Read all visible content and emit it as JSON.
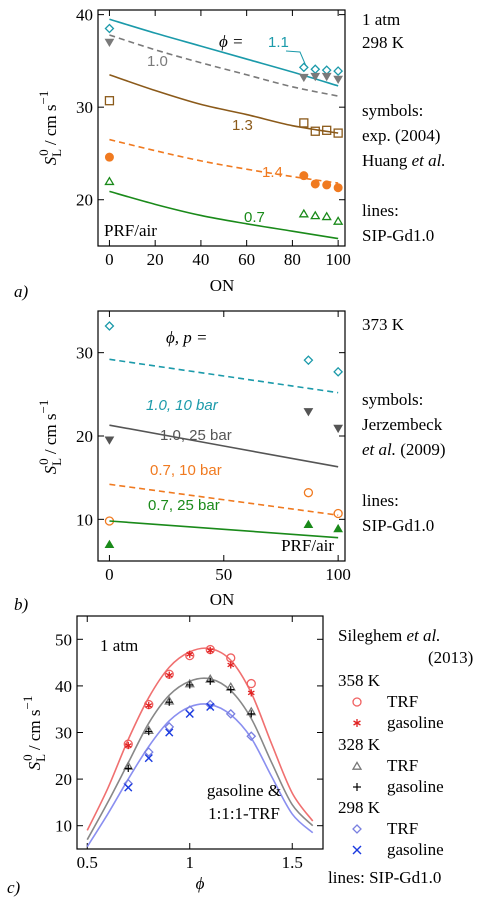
{
  "chart_data": [
    {
      "id": "a",
      "type": "line",
      "panel_label": "a)",
      "xlabel": "ON",
      "ylabel": "S_L^0 / cm s^-1",
      "xlim": [
        -5,
        103
      ],
      "ylim": [
        15,
        40.5
      ],
      "xticks": [
        0,
        20,
        40,
        60,
        80,
        100
      ],
      "yticks": [
        20,
        30,
        40
      ],
      "grid": false,
      "side_notes": [
        "1 atm",
        "298 K",
        "symbols:",
        "exp. (2004)",
        "Huang et al.",
        "lines:",
        "SIP-Gd1.0"
      ],
      "inner_text": "PRF/air",
      "legend_header": "ϕ =",
      "series": [
        {
          "name": "1.1",
          "color": "#1b9aaa",
          "dash": false,
          "marker": "diamond",
          "line_x": [
            0,
            20,
            40,
            60,
            80,
            100
          ],
          "line_y": [
            39.5,
            38.0,
            36.6,
            35.2,
            33.8,
            32.3
          ],
          "points_x": [
            0,
            85,
            90,
            95,
            100
          ],
          "points_y": [
            38.5,
            34.3,
            34.1,
            34.0,
            33.9
          ]
        },
        {
          "name": "1.0",
          "color": "#7a7a7a",
          "dash": true,
          "marker": "triangle-down",
          "line_x": [
            0,
            20,
            40,
            60,
            80,
            100
          ],
          "line_y": [
            37.8,
            36.2,
            34.8,
            33.5,
            32.2,
            31.2
          ],
          "points_x": [
            0,
            85,
            90,
            95,
            100
          ],
          "points_y": [
            37.0,
            33.2,
            33.3,
            33.3,
            33.0
          ]
        },
        {
          "name": "1.3",
          "color": "#8b5a1a",
          "dash": false,
          "marker": "square",
          "line_x": [
            0,
            20,
            40,
            60,
            80,
            100
          ],
          "line_y": [
            33.5,
            31.8,
            30.3,
            29.2,
            28.0,
            27.2
          ],
          "points_x": [
            0,
            85,
            90,
            95,
            100
          ],
          "points_y": [
            30.7,
            28.3,
            27.4,
            27.5,
            27.2
          ]
        },
        {
          "name": "1.4",
          "color": "#f07a20",
          "dash": true,
          "marker": "circle-filled",
          "line_x": [
            0,
            20,
            40,
            60,
            80,
            100
          ],
          "line_y": [
            26.5,
            25.3,
            24.2,
            23.3,
            22.5,
            21.8
          ],
          "points_x": [
            0,
            85,
            90,
            95,
            100
          ],
          "points_y": [
            24.6,
            22.6,
            21.7,
            21.6,
            21.3
          ]
        },
        {
          "name": "0.7",
          "color": "#1a8a1a",
          "dash": false,
          "marker": "triangle",
          "line_x": [
            0,
            20,
            40,
            60,
            80,
            100
          ],
          "line_y": [
            20.9,
            19.5,
            18.3,
            17.4,
            16.6,
            15.8
          ],
          "points_x": [
            0,
            85,
            90,
            95,
            100
          ],
          "points_y": [
            22.0,
            18.5,
            18.3,
            18.2,
            17.7
          ]
        }
      ]
    },
    {
      "id": "b",
      "type": "line",
      "panel_label": "b)",
      "xlabel": "ON",
      "ylabel": "S_L^0 / cm s^-1",
      "xlim": [
        -5,
        103
      ],
      "ylim": [
        5,
        35
      ],
      "xticks": [
        0,
        50,
        100
      ],
      "yticks": [
        10,
        20,
        30
      ],
      "grid": false,
      "side_notes": [
        "373 K",
        "symbols:",
        "Jerzembeck",
        "et al. (2009)",
        "lines:",
        "SIP-Gd1.0"
      ],
      "inner_text": "PRF/air",
      "legend_header": "ϕ, p =",
      "series": [
        {
          "name": "1.0, 10 bar",
          "color": "#1b9aaa",
          "dash": true,
          "marker": "diamond",
          "line_x": [
            0,
            100
          ],
          "line_y": [
            29.2,
            25.2
          ],
          "points_x": [
            0,
            87,
            100
          ],
          "points_y": [
            33.2,
            29.1,
            27.7
          ]
        },
        {
          "name": "1.0, 25 bar",
          "color": "#555555",
          "dash": false,
          "marker": "triangle-down",
          "line_x": [
            0,
            100
          ],
          "line_y": [
            21.3,
            16.3
          ],
          "points_x": [
            0,
            87,
            100
          ],
          "points_y": [
            19.5,
            22.9,
            20.9
          ]
        },
        {
          "name": "0.7, 10 bar",
          "color": "#f07a20",
          "dash": true,
          "marker": "circle",
          "line_x": [
            0,
            100
          ],
          "line_y": [
            14.2,
            10.5
          ],
          "points_x": [
            0,
            87,
            100
          ],
          "points_y": [
            9.8,
            13.2,
            10.7
          ]
        },
        {
          "name": "0.7, 25 bar",
          "color": "#1a8a1a",
          "dash": false,
          "marker": "triangle",
          "line_x": [
            0,
            100
          ],
          "line_y": [
            9.8,
            7.8
          ],
          "points_x": [
            0,
            87,
            100
          ],
          "points_y": [
            7.0,
            9.4,
            8.9
          ]
        }
      ]
    },
    {
      "id": "c",
      "type": "line",
      "panel_label": "c)",
      "xlabel": "ϕ",
      "ylabel": "S_L^0 / cm s^-1",
      "xlim": [
        0.45,
        1.65
      ],
      "ylim": [
        5,
        55
      ],
      "xticks": [
        0.5,
        1.0,
        1.5
      ],
      "yticks": [
        10,
        20,
        30,
        40,
        50
      ],
      "grid": false,
      "inner_text_top": "1 atm",
      "inner_text_bottom": [
        "gasoline &",
        "1:1:1-TRF"
      ],
      "legend_title": [
        "Sileghem et al.",
        "(2013)"
      ],
      "legend_groups": [
        {
          "temp": "358 K",
          "entries": [
            {
              "label": "TRF",
              "marker": "circle",
              "color": "#f06060"
            },
            {
              "label": "gasoline",
              "marker": "asterisk",
              "color": "#e02020"
            }
          ]
        },
        {
          "temp": "328 K",
          "entries": [
            {
              "label": "TRF",
              "marker": "triangle",
              "color": "#777777"
            },
            {
              "label": "gasoline",
              "marker": "plus",
              "color": "#000000"
            }
          ]
        },
        {
          "temp": "298 K",
          "entries": [
            {
              "label": "TRF",
              "marker": "diamond",
              "color": "#7a80e0"
            },
            {
              "label": "gasoline",
              "marker": "cross",
              "color": "#1a3ae0"
            }
          ]
        }
      ],
      "lines_note": "lines: SIP-Gd1.0",
      "series": [
        {
          "name": "358 K",
          "color": "#f07070",
          "line_x": [
            0.5,
            0.6,
            0.7,
            0.8,
            0.9,
            1.0,
            1.1,
            1.2,
            1.3,
            1.4,
            1.5,
            1.6
          ],
          "line_y": [
            9.0,
            18.0,
            28.5,
            37.5,
            44.0,
            47.3,
            48.0,
            45.5,
            38.5,
            27.5,
            17.0,
            11.0
          ],
          "trf_x": [
            0.7,
            0.8,
            0.9,
            1.0,
            1.1,
            1.2,
            1.3
          ],
          "trf_y": [
            27.5,
            36.0,
            42.5,
            46.5,
            47.8,
            46.0,
            40.5
          ],
          "gas_x": [
            0.7,
            0.8,
            0.9,
            1.0,
            1.1,
            1.2,
            1.3
          ],
          "gas_y": [
            27.2,
            35.8,
            42.3,
            46.8,
            47.6,
            44.5,
            38.5
          ]
        },
        {
          "name": "328 K",
          "color": "#888888",
          "line_x": [
            0.5,
            0.6,
            0.7,
            0.8,
            0.9,
            1.0,
            1.1,
            1.2,
            1.3,
            1.4,
            1.5,
            1.6
          ],
          "line_y": [
            7.0,
            15.0,
            23.5,
            32.0,
            38.0,
            41.0,
            41.5,
            39.0,
            33.0,
            23.5,
            14.5,
            10.0
          ],
          "trf_x": [
            0.7,
            0.8,
            0.9,
            1.0,
            1.1,
            1.2,
            1.3
          ],
          "trf_y": [
            22.8,
            30.5,
            36.8,
            40.5,
            41.5,
            39.8,
            34.5
          ],
          "gas_x": [
            0.7,
            0.8,
            0.9,
            1.0,
            1.1,
            1.2,
            1.3
          ],
          "gas_y": [
            22.3,
            30.2,
            36.5,
            40.2,
            41.0,
            39.2,
            34.0
          ]
        },
        {
          "name": "298 K",
          "color": "#8a8ff0",
          "line_x": [
            0.5,
            0.6,
            0.7,
            0.8,
            0.9,
            1.0,
            1.1,
            1.2,
            1.3,
            1.4,
            1.5,
            1.6
          ],
          "line_y": [
            5.5,
            12.5,
            20.0,
            27.0,
            32.5,
            35.5,
            36.0,
            33.8,
            28.8,
            20.5,
            12.5,
            8.5
          ],
          "trf_x": [
            0.7,
            0.8,
            0.9,
            1.0,
            1.1,
            1.2,
            1.3
          ],
          "trf_y": [
            19.0,
            25.8,
            31.2,
            34.8,
            36.0,
            34.0,
            29.2
          ],
          "gas_x": [
            0.7,
            0.8,
            0.9,
            1.0,
            1.1
          ],
          "gas_y": [
            18.2,
            24.5,
            30.0,
            34.0,
            35.5
          ]
        }
      ]
    }
  ]
}
